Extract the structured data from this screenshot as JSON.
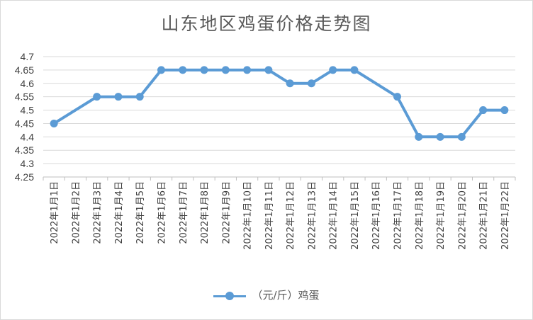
{
  "chart_data": {
    "type": "line",
    "title": "山东地区鸡蛋价格走势图",
    "xlabel": "",
    "ylabel": "",
    "categories": [
      "2022年1月1日",
      "2022年1月2日",
      "2022年1月3日",
      "2022年1月4日",
      "2022年1月5日",
      "2022年1月6日",
      "2022年1月7日",
      "2022年1月8日",
      "2022年1月9日",
      "2022年1月10日",
      "2022年1月11日",
      "2022年1月12日",
      "2022年1月13日",
      "2022年1月14日",
      "2022年1月15日",
      "2022年1月16日",
      "2022年1月17日",
      "2022年1月18日",
      "2022年1月19日",
      "2022年1月20日",
      "2022年1月21日",
      "2022年1月22日"
    ],
    "series": [
      {
        "name": "（元/斤）鸡蛋",
        "color": "#5b9bd5",
        "values": [
          4.45,
          null,
          4.55,
          4.55,
          4.55,
          4.65,
          4.65,
          4.65,
          4.65,
          4.65,
          4.65,
          4.6,
          4.6,
          4.65,
          4.65,
          null,
          4.55,
          4.4,
          4.4,
          4.4,
          4.5,
          4.5
        ]
      }
    ],
    "ylim": [
      4.25,
      4.7
    ],
    "yticks": [
      "4.7",
      "4.65",
      "4.6",
      "4.55",
      "4.5",
      "4.45",
      "4.4",
      "4.35",
      "4.3",
      "4.25"
    ],
    "grid": true,
    "legend": "bottom"
  }
}
